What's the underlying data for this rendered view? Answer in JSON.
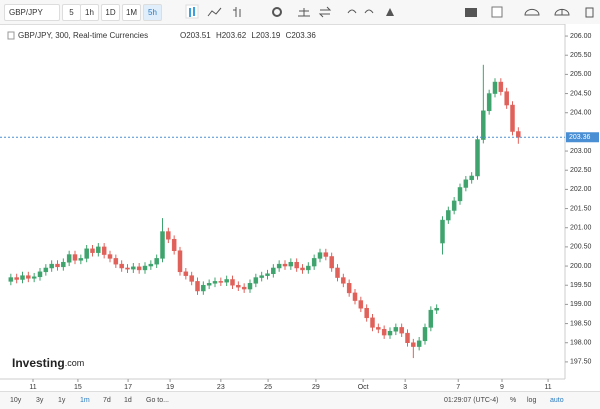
{
  "toolbar": {
    "symbol": "GBP/JPY",
    "intervals": [
      "5",
      "1h",
      "1D",
      "1M",
      "5h"
    ]
  },
  "bottom_bar": {
    "ranges": [
      "10y",
      "3y",
      "1y",
      "1m",
      "7d",
      "1d"
    ],
    "goto": "Go to...",
    "clock": "01:29:07 (UTC-4)",
    "options": [
      "%",
      "log",
      "auto"
    ]
  },
  "logo": {
    "text": "Investing",
    "suffix": ".com"
  },
  "legend": {
    "symbol": "GBP/JPY, 300, Real-time Currencies",
    "open_label": "O",
    "high_label": "H",
    "low_label": "L",
    "close_label": "C"
  },
  "chart_data": {
    "type": "candlestick",
    "up_color": "#3ea36d",
    "down_color": "#e0605a",
    "price_line_color": "#4a8fd4",
    "grid": false,
    "xlim": [
      -1,
      95
    ],
    "xticks": [
      {
        "value": 3.8,
        "label": "11"
      },
      {
        "value": 11.5,
        "label": "15"
      },
      {
        "value": 20.1,
        "label": "17"
      },
      {
        "value": 27.3,
        "label": "19"
      },
      {
        "value": 36.0,
        "label": "23"
      },
      {
        "value": 44.1,
        "label": "25"
      },
      {
        "value": 52.3,
        "label": "29"
      },
      {
        "value": 60.4,
        "label": "Oct"
      },
      {
        "value": 67.6,
        "label": "3"
      },
      {
        "value": 76.7,
        "label": "7"
      },
      {
        "value": 84.2,
        "label": "9"
      },
      {
        "value": 92.1,
        "label": "11"
      }
    ],
    "ylim": [
      197.08,
      206.21
    ],
    "yticks": [
      {
        "value": 197.5,
        "label": "197.50"
      },
      {
        "value": 198,
        "label": "198.00"
      },
      {
        "value": 198.5,
        "label": "198.50"
      },
      {
        "value": 199,
        "label": "199.00"
      },
      {
        "value": 199.5,
        "label": "199.50"
      },
      {
        "value": 200,
        "label": "200.00"
      },
      {
        "value": 200.5,
        "label": "200.50"
      },
      {
        "value": 201,
        "label": "201.00"
      },
      {
        "value": 201.5,
        "label": "201.50"
      },
      {
        "value": 202,
        "label": "202.00"
      },
      {
        "value": 202.5,
        "label": "202.50"
      },
      {
        "value": 203,
        "label": "203.00"
      },
      {
        "value": 204,
        "label": "204.00"
      },
      {
        "value": 204.5,
        "label": "204.50"
      },
      {
        "value": 205,
        "label": "205.00"
      },
      {
        "value": 205.5,
        "label": "205.50"
      },
      {
        "value": 206,
        "label": "206.00"
      }
    ],
    "x": [
      0,
      1,
      2,
      3,
      4,
      5,
      6,
      7,
      8,
      9,
      10,
      11,
      12,
      13,
      14,
      15,
      16,
      17,
      18,
      19,
      20,
      21,
      22,
      23,
      24,
      25,
      26,
      27,
      28,
      29,
      30,
      31,
      32,
      33,
      34,
      35,
      36,
      37,
      38,
      39,
      40,
      41,
      42,
      43,
      44,
      45,
      46,
      47,
      48,
      49,
      50,
      51,
      52,
      53,
      54,
      55,
      56,
      57,
      58,
      59,
      60,
      61,
      62,
      63,
      64,
      65,
      66,
      67,
      68,
      69,
      70,
      71,
      72,
      73,
      74,
      75,
      76,
      77,
      78,
      79,
      80,
      81,
      82,
      83,
      84,
      85,
      86,
      87
    ],
    "open": [
      199.6,
      199.7,
      199.65,
      199.75,
      199.68,
      199.72,
      199.85,
      199.95,
      200.05,
      199.98,
      200.1,
      200.3,
      200.15,
      200.2,
      200.45,
      200.35,
      200.5,
      200.3,
      200.2,
      200.05,
      199.95,
      199.92,
      199.98,
      199.9,
      200.0,
      200.05,
      200.2,
      200.9,
      200.7,
      200.4,
      199.85,
      199.75,
      199.6,
      199.35,
      199.5,
      199.55,
      199.6,
      199.58,
      199.65,
      199.5,
      199.45,
      199.4,
      199.55,
      199.7,
      199.75,
      199.8,
      199.95,
      200.05,
      200.0,
      200.1,
      199.95,
      199.9,
      200.0,
      200.2,
      200.35,
      200.25,
      199.95,
      199.7,
      199.55,
      199.3,
      199.1,
      198.9,
      198.65,
      198.4,
      198.35,
      198.2,
      198.3,
      198.4,
      198.25,
      198.0,
      197.9,
      198.05,
      198.4,
      198.85,
      200.6,
      201.2,
      201.45,
      201.7,
      202.05,
      202.25,
      202.35,
      203.3,
      204.05,
      204.5,
      204.8,
      204.55,
      204.2,
      203.51
    ],
    "high": [
      199.8,
      199.8,
      199.85,
      199.85,
      199.82,
      199.95,
      200.05,
      200.15,
      200.15,
      200.2,
      200.4,
      200.4,
      200.3,
      200.55,
      200.55,
      200.6,
      200.6,
      200.4,
      200.3,
      200.15,
      200.05,
      200.08,
      200.08,
      200.1,
      200.15,
      200.3,
      201.25,
      201.0,
      200.8,
      200.5,
      199.95,
      199.85,
      199.7,
      199.6,
      199.65,
      199.7,
      199.7,
      199.75,
      199.75,
      199.6,
      199.55,
      199.65,
      199.8,
      199.85,
      199.9,
      200.05,
      200.15,
      200.15,
      200.2,
      200.2,
      200.05,
      200.1,
      200.3,
      200.45,
      200.45,
      200.35,
      200.05,
      199.8,
      199.65,
      199.4,
      199.2,
      199.0,
      198.75,
      198.5,
      198.45,
      198.4,
      198.5,
      198.5,
      198.35,
      198.1,
      198.15,
      198.5,
      198.95,
      199.0,
      201.3,
      201.55,
      201.8,
      202.15,
      202.35,
      202.45,
      203.4,
      205.25,
      204.6,
      204.9,
      204.9,
      204.65,
      204.3,
      203.62
    ],
    "low": [
      199.5,
      199.55,
      199.55,
      199.58,
      199.58,
      199.62,
      199.75,
      199.85,
      199.88,
      199.88,
      200.0,
      200.05,
      200.05,
      200.1,
      200.25,
      200.25,
      200.2,
      200.1,
      199.95,
      199.85,
      199.82,
      199.82,
      199.8,
      199.8,
      199.9,
      199.95,
      200.1,
      200.6,
      200.3,
      199.75,
      199.65,
      199.5,
      199.25,
      199.25,
      199.4,
      199.45,
      199.48,
      199.48,
      199.4,
      199.35,
      199.3,
      199.3,
      199.45,
      199.6,
      199.65,
      199.7,
      199.85,
      199.9,
      199.9,
      199.85,
      199.8,
      199.8,
      199.9,
      200.1,
      200.15,
      199.85,
      199.6,
      199.45,
      199.2,
      199.0,
      198.8,
      198.55,
      198.3,
      198.25,
      198.1,
      198.1,
      198.2,
      198.15,
      197.9,
      197.6,
      197.8,
      197.95,
      198.3,
      198.75,
      200.3,
      201.1,
      201.35,
      201.6,
      201.95,
      202.15,
      202.25,
      203.2,
      203.95,
      204.4,
      204.45,
      204.1,
      203.41,
      203.19
    ],
    "close": [
      199.7,
      199.65,
      199.75,
      199.68,
      199.72,
      199.85,
      199.95,
      200.05,
      199.98,
      200.1,
      200.3,
      200.15,
      200.2,
      200.45,
      200.35,
      200.5,
      200.3,
      200.2,
      200.05,
      199.95,
      199.92,
      199.98,
      199.9,
      200.0,
      200.05,
      200.2,
      200.9,
      200.7,
      200.4,
      199.85,
      199.75,
      199.6,
      199.35,
      199.5,
      199.55,
      199.6,
      199.58,
      199.65,
      199.5,
      199.45,
      199.4,
      199.55,
      199.7,
      199.75,
      199.8,
      199.95,
      200.05,
      200.0,
      200.1,
      199.95,
      199.9,
      200.0,
      200.2,
      200.35,
      200.25,
      199.95,
      199.7,
      199.55,
      199.3,
      199.1,
      198.9,
      198.65,
      198.4,
      198.35,
      198.2,
      198.3,
      198.4,
      198.25,
      198.0,
      197.9,
      198.05,
      198.4,
      198.85,
      198.9,
      201.2,
      201.45,
      201.7,
      202.05,
      202.25,
      202.35,
      203.3,
      204.05,
      204.5,
      204.8,
      204.55,
      204.2,
      203.51,
      203.36
    ]
  }
}
